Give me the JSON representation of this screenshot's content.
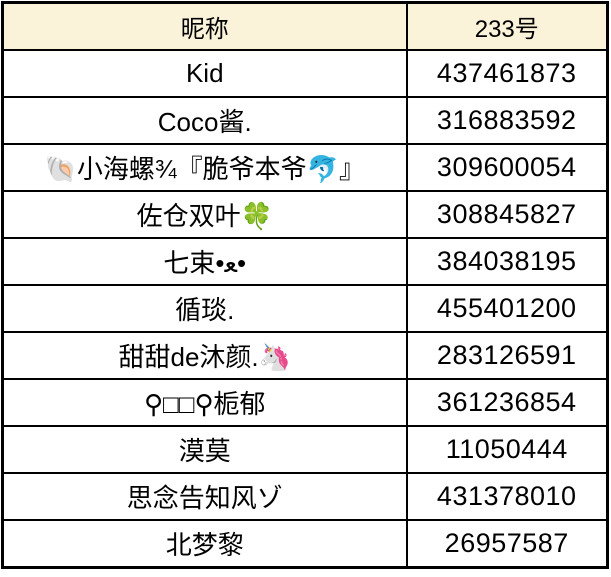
{
  "chart_data": {
    "type": "table",
    "columns": [
      "昵称",
      "233号"
    ],
    "rows": [
      {
        "name": "Kid",
        "number": "437461873"
      },
      {
        "name": "Coco酱.",
        "number": "316883592"
      },
      {
        "name": "🐚小海螺¾『脆爷本爷🐬』",
        "number": "309600054"
      },
      {
        "name": "佐仓双叶🍀",
        "number": "308845827"
      },
      {
        "name": "七束•ﻌ•",
        "number": "384038195"
      },
      {
        "name": "循琰.",
        "number": "455401200"
      },
      {
        "name": "甜甜de沐颜.🦄",
        "number": "283126591"
      },
      {
        "name": "⚲□□⚲栀郁",
        "number": "361236854"
      },
      {
        "name": "漠莫",
        "number": "11050444"
      },
      {
        "name": "思念告知风ゾ",
        "number": "431378010"
      },
      {
        "name": "北梦黎",
        "number": "26957587"
      }
    ],
    "layout": {
      "header_bg": "#fbf3d9",
      "body_bg": "#ffffff",
      "border_color": "#000000",
      "text_color": "#000000",
      "grid": "on",
      "legend": "none",
      "title": ""
    }
  }
}
